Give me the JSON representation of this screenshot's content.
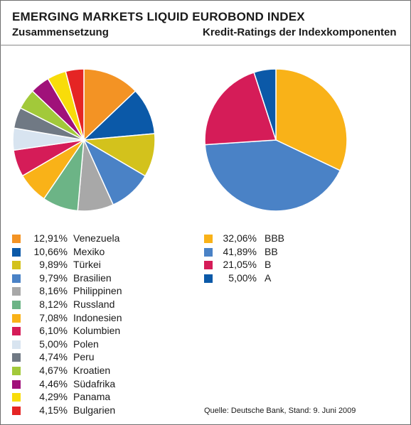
{
  "title": "EMERGING MARKETS LIQUID EUROBOND INDEX",
  "subtitle_left": "Zusammensetzung",
  "subtitle_right": "Kredit-Ratings der Indexkomponenten",
  "source": "Quelle: Deutsche Bank, Stand: 9. Juni 2009",
  "chart_data": [
    {
      "type": "pie",
      "title": "Zusammensetzung",
      "slices": [
        {
          "label": "Venezuela",
          "value": 12.91,
          "value_text": "12,91%",
          "color": "#f39324"
        },
        {
          "label": "Mexiko",
          "value": 10.66,
          "value_text": "10,66%",
          "color": "#0b59a8"
        },
        {
          "label": "Türkei",
          "value": 9.89,
          "value_text": "9,89%",
          "color": "#d3c21c"
        },
        {
          "label": "Brasilien",
          "value": 9.79,
          "value_text": "9,79%",
          "color": "#4a82c6"
        },
        {
          "label": "Philippinen",
          "value": 8.16,
          "value_text": "8,16%",
          "color": "#a8a8a8"
        },
        {
          "label": "Russland",
          "value": 8.12,
          "value_text": "8,12%",
          "color": "#6cb486"
        },
        {
          "label": "Indonesien",
          "value": 7.08,
          "value_text": "7,08%",
          "color": "#f9b218"
        },
        {
          "label": "Kolumbien",
          "value": 6.1,
          "value_text": "6,10%",
          "color": "#d51c58"
        },
        {
          "label": "Polen",
          "value": 5.0,
          "value_text": "5,00%",
          "color": "#d8e4f0"
        },
        {
          "label": "Peru",
          "value": 4.74,
          "value_text": "4,74%",
          "color": "#707984"
        },
        {
          "label": "Kroatien",
          "value": 4.67,
          "value_text": "4,67%",
          "color": "#a2c93a"
        },
        {
          "label": "Südafrika",
          "value": 4.46,
          "value_text": "4,46%",
          "color": "#a0117a"
        },
        {
          "label": "Panama",
          "value": 4.29,
          "value_text": "4,29%",
          "color": "#f8dc0a"
        },
        {
          "label": "Bulgarien",
          "value": 4.15,
          "value_text": "4,15%",
          "color": "#e52524"
        }
      ]
    },
    {
      "type": "pie",
      "title": "Kredit-Ratings der Indexkomponenten",
      "slices": [
        {
          "label": "BBB",
          "value": 32.06,
          "value_text": "32,06%",
          "color": "#f9b218"
        },
        {
          "label": "BB",
          "value": 41.89,
          "value_text": "41,89%",
          "color": "#4a82c6"
        },
        {
          "label": "B",
          "value": 21.05,
          "value_text": "21,05%",
          "color": "#d51c58"
        },
        {
          "label": "A",
          "value": 5.0,
          "value_text": "5,00%",
          "color": "#0b59a8"
        }
      ]
    }
  ]
}
